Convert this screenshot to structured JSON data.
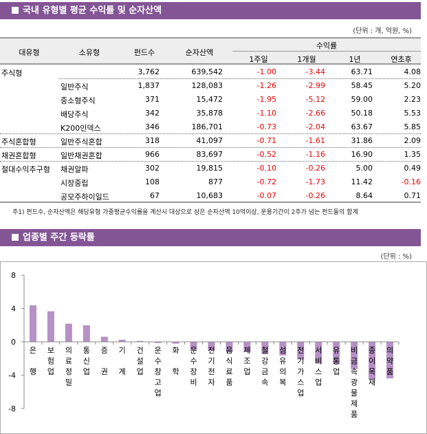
{
  "section1": {
    "title": "국내 유형별 평균 수익률 및 순자산액",
    "unit": "(단위 : 개, 억원, %)",
    "headers": {
      "major": "대유형",
      "minor": "소유형",
      "count": "펀드수",
      "aum": "순자산액",
      "returns": "수익률",
      "w1": "1주일",
      "m1": "1개월",
      "y1": "1년",
      "ytd": "연초후"
    },
    "rows": [
      {
        "major": "주식형",
        "minor": "",
        "count": "3,762",
        "aum": "639,542",
        "w1": "-1.00",
        "m1": "-3.44",
        "y1": "63.71",
        "ytd": "4.08"
      },
      {
        "major": "",
        "minor": "일반주식",
        "count": "1,837",
        "aum": "128,083",
        "w1": "-1.26",
        "m1": "-2.99",
        "y1": "58.45",
        "ytd": "5.20"
      },
      {
        "major": "",
        "minor": "중소형주식",
        "count": "371",
        "aum": "15,472",
        "w1": "-1.95",
        "m1": "-5.12",
        "y1": "59.00",
        "ytd": "2.23"
      },
      {
        "major": "",
        "minor": "배당주식",
        "count": "342",
        "aum": "35,878",
        "w1": "-1.10",
        "m1": "-2.66",
        "y1": "50.18",
        "ytd": "5.53"
      },
      {
        "major": "",
        "minor": "K200인덱스",
        "count": "346",
        "aum": "186,701",
        "w1": "-0.73",
        "m1": "-2.04",
        "y1": "63.67",
        "ytd": "5.85"
      },
      {
        "major": "주식혼합형",
        "minor": "일반주식혼합",
        "count": "318",
        "aum": "41,097",
        "w1": "-0.71",
        "m1": "-1.61",
        "y1": "31.86",
        "ytd": "2.09"
      },
      {
        "major": "채권혼합형",
        "minor": "일반채권혼합",
        "count": "966",
        "aum": "83,697",
        "w1": "-0.52",
        "m1": "-1.16",
        "y1": "16.90",
        "ytd": "1.35"
      },
      {
        "major": "절대수익추구형",
        "minor": "채권알파",
        "count": "302",
        "aum": "19,815",
        "w1": "-0.10",
        "m1": "-0.26",
        "y1": "5.00",
        "ytd": "0.49"
      },
      {
        "major": "",
        "minor": "시장중립",
        "count": "108",
        "aum": "877",
        "w1": "-0.72",
        "m1": "-1.73",
        "y1": "11.42",
        "ytd": "-0.16"
      },
      {
        "major": "",
        "minor": "공모주하이일드",
        "count": "67",
        "aum": "10,683",
        "w1": "-0.07",
        "m1": "-0.26",
        "y1": "8.64",
        "ytd": "0.71"
      }
    ],
    "footnote": "주1) 펀드수, 순자산액은 해당유형 가중평균수익률을 계산시 대상으로 삼은 순자산액 10억이상, 운용기간이 2주가 넘는 펀드들의 합계"
  },
  "section2": {
    "title": "업종별 주간 등락률",
    "unit": "(단위 : %)"
  },
  "colors": {
    "header": "#835595",
    "bar": "#b591c5",
    "negative": "#ee0000"
  },
  "chart_data": {
    "type": "bar",
    "categories": [
      "은행",
      "보험업",
      "의료정밀",
      "통신업",
      "증권",
      "기계",
      "건설업",
      "운수창고업",
      "화학",
      "운수장비",
      "전기전자",
      "음식료품",
      "제조업",
      "철강금속",
      "섬유의복",
      "전기가스업",
      "서비스업",
      "유통업",
      "비금속광물제품",
      "종이목재",
      "의약품"
    ],
    "label_lines": [
      [
        "은",
        "",
        "행"
      ],
      [
        "보",
        "험",
        "업"
      ],
      [
        "의",
        "료",
        "정",
        "밀"
      ],
      [
        "통",
        "신",
        "업"
      ],
      [
        "증",
        "",
        "권"
      ],
      [
        "기",
        "",
        "계"
      ],
      [
        "건",
        "설",
        "업"
      ],
      [
        "운",
        "수",
        "창",
        "고",
        "업"
      ],
      [
        "화",
        "",
        "학"
      ],
      [
        "운",
        "수",
        "장",
        "비"
      ],
      [
        "전",
        "기",
        "전",
        "자"
      ],
      [
        "음",
        "식",
        "료",
        "품"
      ],
      [
        "제",
        "조",
        "업"
      ],
      [
        "철",
        "강",
        "금",
        "속"
      ],
      [
        "섬",
        "유",
        "의",
        "복"
      ],
      [
        "전",
        "기",
        "가",
        "스",
        "업"
      ],
      [
        "서",
        "비",
        "스",
        "업"
      ],
      [
        "유",
        "통",
        "업"
      ],
      [
        "비",
        "금",
        "속",
        "광",
        "물",
        "제",
        "품"
      ],
      [
        "종",
        "이",
        "목",
        "재"
      ],
      [
        "의",
        "약",
        "품"
      ]
    ],
    "values": [
      4.39,
      3.67,
      2.18,
      1.99,
      0.61,
      0.25,
      0.11,
      -0.14,
      -0.22,
      -0.97,
      -1.08,
      -1.24,
      -1.24,
      -1.46,
      -1.63,
      -2.12,
      -2.62,
      -2.7,
      -3.28,
      -4.52,
      -4.39
    ],
    "ylim": [
      -8,
      8
    ],
    "yticks": [
      "8",
      "4",
      "0",
      "-4",
      "-8"
    ],
    "grid": false,
    "legend": "none"
  }
}
